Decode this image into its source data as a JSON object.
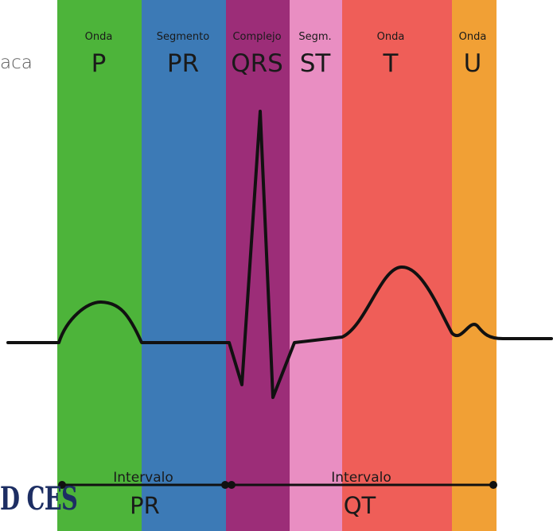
{
  "colors": {
    "p": "#4db43a",
    "pr_seg": "#3c7ab6",
    "qrs": "#9c2d78",
    "st": "#e98ec2",
    "t": "#ef5e58",
    "u": "#f1a035",
    "wave": "#111111",
    "label_text": "#1a1a1a"
  },
  "segments": [
    {
      "small": "Onda",
      "big": "P"
    },
    {
      "small": "Segmento",
      "big": "PR"
    },
    {
      "small": "Complejo",
      "big": "QRS"
    },
    {
      "small": "Segm.",
      "big": "ST"
    },
    {
      "small": "Onda",
      "big": "T"
    },
    {
      "small": "Onda",
      "big": "U"
    }
  ],
  "intervals": [
    {
      "small": "Intervalo",
      "big": "PR"
    },
    {
      "small": "Intervalo",
      "big": "QT"
    }
  ],
  "partial_text": "aca",
  "logo_text": "D CES"
}
